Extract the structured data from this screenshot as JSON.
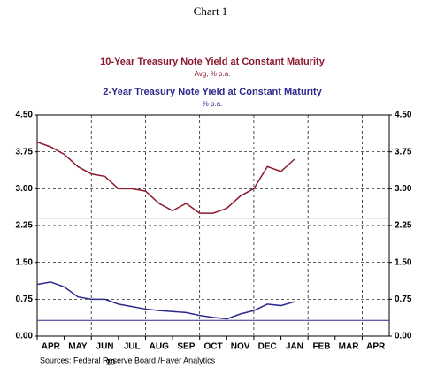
{
  "chart_data": {
    "type": "line",
    "title": "Chart 1",
    "legend": [
      {
        "label": "10-Year Treasury Note Yield at Constant Maturity",
        "sub": "Avg, % p.a."
      },
      {
        "label": "2-Year Treasury Note Yield at Constant Maturity",
        "sub": "% p.a."
      }
    ],
    "categories": [
      "APR",
      "MAY",
      "JUN",
      "JUL",
      "AUG",
      "SEP",
      "OCT",
      "NOV",
      "DEC",
      "JAN",
      "FEB",
      "MAR",
      "APR"
    ],
    "year_label": "10",
    "source": "Sources:  Federal Reserve Board /Haver Analytics",
    "x": [
      0,
      0.5,
      1,
      1.5,
      2,
      2.5,
      3,
      3.5,
      4,
      4.5,
      5,
      5.5,
      6,
      6.5,
      7,
      7.5,
      8,
      8.5,
      9,
      9.5
    ],
    "xlim": [
      0,
      13
    ],
    "series": [
      {
        "name": "10-Year Treasury Note Yield at Constant Maturity",
        "color": "#8b1a2e",
        "values": [
          3.95,
          3.85,
          3.7,
          3.45,
          3.3,
          3.25,
          3.0,
          3.0,
          2.95,
          2.7,
          2.55,
          2.7,
          2.5,
          2.5,
          2.6,
          2.85,
          3.0,
          3.45,
          3.35,
          3.6
        ]
      },
      {
        "name": "2-Year Treasury Note Yield at Constant Maturity",
        "color": "#2e2a8c",
        "values": [
          1.05,
          1.1,
          1.0,
          0.8,
          0.75,
          0.75,
          0.65,
          0.6,
          0.55,
          0.52,
          0.5,
          0.48,
          0.42,
          0.38,
          0.35,
          0.45,
          0.52,
          0.65,
          0.62,
          0.7
        ]
      }
    ],
    "hlines": [
      {
        "value": 2.4,
        "color": "#8b1a2e"
      },
      {
        "value": 0.32,
        "color": "#2e2a8c"
      }
    ],
    "ylim": [
      0,
      4.5
    ],
    "yticks": [
      {
        "value": 0,
        "label": "0.00"
      },
      {
        "value": 0.75,
        "label": "0.75"
      },
      {
        "value": 1.5,
        "label": "1.50"
      },
      {
        "value": 2.25,
        "label": "2.25"
      },
      {
        "value": 3,
        "label": "3.00"
      },
      {
        "value": 3.75,
        "label": "3.75"
      },
      {
        "value": 4.5,
        "label": "4.50"
      }
    ],
    "grid": true
  }
}
